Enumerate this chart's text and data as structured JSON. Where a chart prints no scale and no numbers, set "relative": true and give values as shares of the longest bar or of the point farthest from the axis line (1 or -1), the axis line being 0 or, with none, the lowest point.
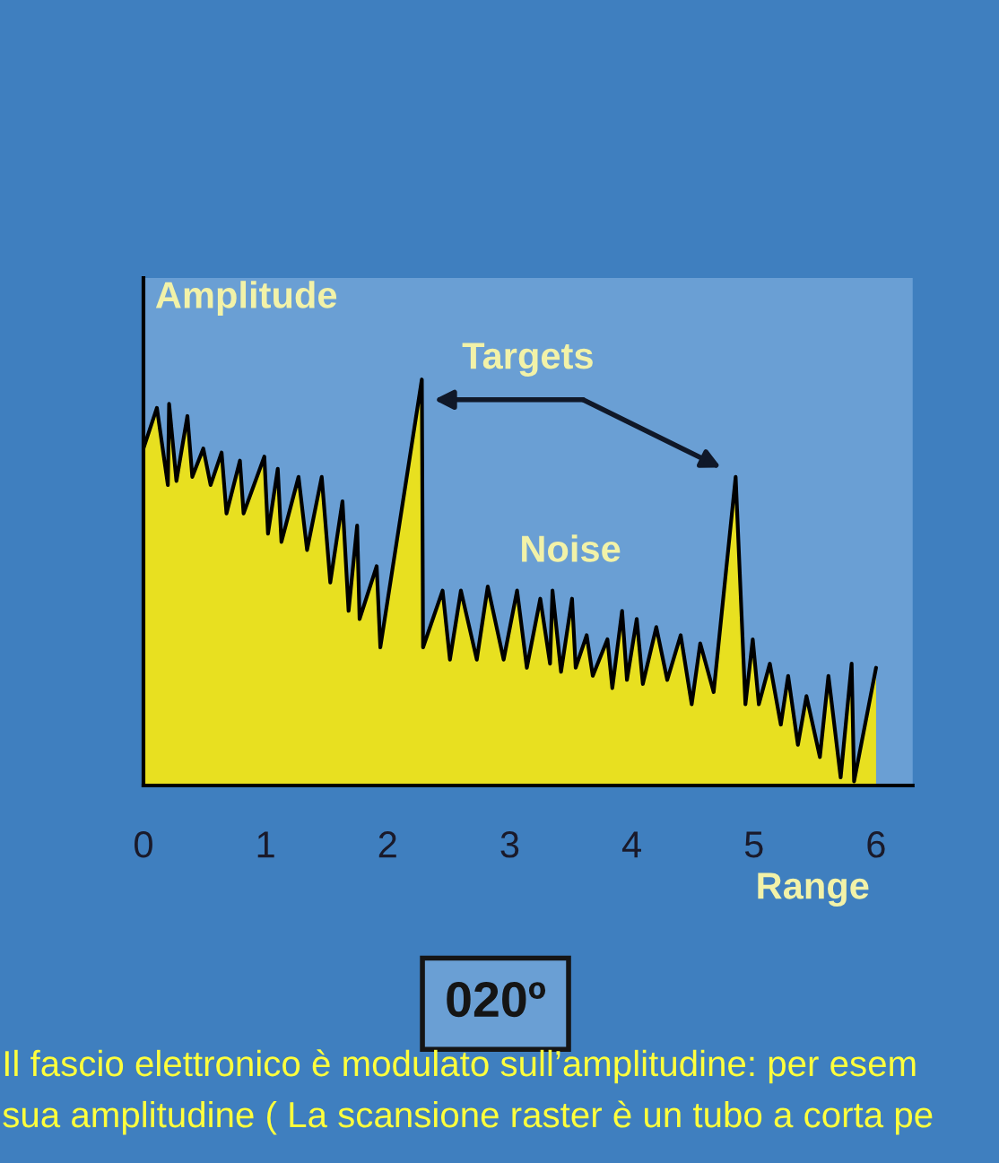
{
  "chart_data": {
    "type": "area",
    "relative": true,
    "xlabel": "Range",
    "ylabel": "Amplitude",
    "xlim": [
      0,
      6.3
    ],
    "xticks": [
      0,
      1,
      2,
      3,
      4,
      5,
      6
    ],
    "grid": false,
    "legend": false,
    "annotations": [
      "Targets",
      "Noise",
      "020º",
      "Il fascio elettronico è modulato sull’amplitudine: per esem",
      "sua amplitudine ( La scansione raster è un tubo a corta pe"
    ],
    "series": [
      {
        "color": "#e8e020",
        "x": [
          0,
          0.11,
          0.2,
          0.21,
          0.27,
          0.36,
          0.4,
          0.49,
          0.55,
          0.64,
          0.68,
          0.79,
          0.82,
          0.99,
          1.02,
          1.1,
          1.13,
          1.27,
          1.34,
          1.46,
          1.53,
          1.63,
          1.68,
          1.75,
          1.77,
          1.91,
          1.94,
          2.28,
          2.29,
          2.45,
          2.51,
          2.6,
          2.73,
          2.82,
          2.95,
          3.06,
          3.14,
          3.25,
          3.33,
          3.35,
          3.42,
          3.51,
          3.54,
          3.63,
          3.68,
          3.8,
          3.84,
          3.92,
          3.96,
          4.04,
          4.09,
          4.2,
          4.29,
          4.4,
          4.49,
          4.56,
          4.67,
          4.85,
          4.93,
          4.99,
          5.04,
          5.13,
          5.22,
          5.28,
          5.36,
          5.43,
          5.54,
          5.61,
          5.71,
          5.8,
          5.82,
          6.0
        ],
        "values": [
          0.83,
          0.93,
          0.74,
          0.94,
          0.75,
          0.91,
          0.76,
          0.83,
          0.74,
          0.82,
          0.67,
          0.8,
          0.67,
          0.81,
          0.62,
          0.78,
          0.6,
          0.76,
          0.58,
          0.76,
          0.5,
          0.7,
          0.43,
          0.64,
          0.41,
          0.54,
          0.34,
          1.0,
          0.34,
          0.48,
          0.31,
          0.48,
          0.31,
          0.49,
          0.31,
          0.48,
          0.29,
          0.46,
          0.3,
          0.48,
          0.28,
          0.46,
          0.29,
          0.37,
          0.27,
          0.36,
          0.24,
          0.43,
          0.26,
          0.41,
          0.25,
          0.39,
          0.26,
          0.37,
          0.2,
          0.35,
          0.23,
          0.76,
          0.2,
          0.36,
          0.2,
          0.3,
          0.15,
          0.27,
          0.1,
          0.22,
          0.07,
          0.27,
          0.02,
          0.3,
          0.01,
          0.29
        ]
      }
    ]
  }
}
